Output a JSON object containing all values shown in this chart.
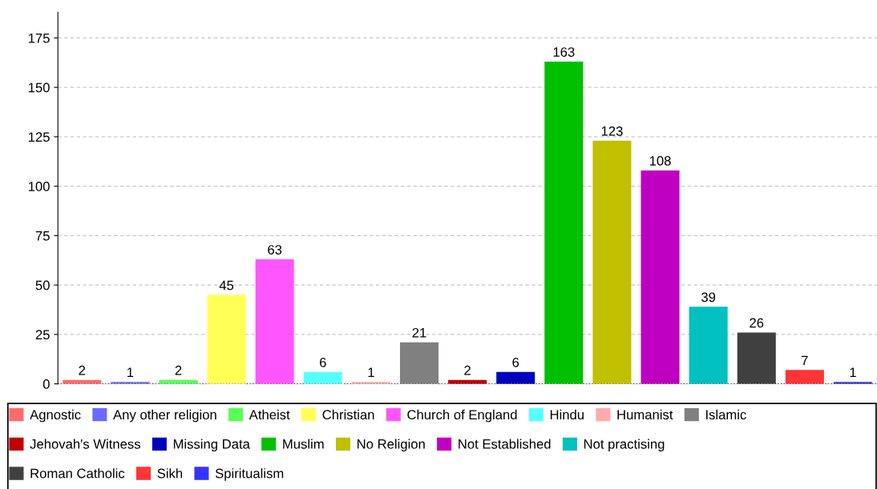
{
  "chart_data": {
    "type": "bar",
    "categories": [
      null,
      null,
      null,
      null,
      null,
      null,
      null,
      null,
      null,
      null,
      null,
      null,
      null,
      null,
      null,
      null,
      null
    ],
    "series": [
      {
        "name": "Agnostic",
        "color": "#ff6a6a",
        "values": [
          2,
          null,
          null,
          null,
          null,
          null,
          null,
          null,
          null,
          null,
          null,
          null,
          null,
          null,
          null,
          null,
          null
        ]
      },
      {
        "name": "Any other religion",
        "color": "#6a6aff",
        "values": [
          null,
          1,
          null,
          null,
          null,
          null,
          null,
          null,
          null,
          null,
          null,
          null,
          null,
          null,
          null,
          null,
          null
        ]
      },
      {
        "name": "Atheist",
        "color": "#55ff55",
        "values": [
          null,
          null,
          2,
          null,
          null,
          null,
          null,
          null,
          null,
          null,
          null,
          null,
          null,
          null,
          null,
          null,
          null
        ]
      },
      {
        "name": "Christian",
        "color": "#ffff55",
        "values": [
          null,
          null,
          null,
          45,
          null,
          null,
          null,
          null,
          null,
          null,
          null,
          null,
          null,
          null,
          null,
          null,
          null
        ]
      },
      {
        "name": "Church of England",
        "color": "#ff55ff",
        "values": [
          null,
          null,
          null,
          null,
          63,
          null,
          null,
          null,
          null,
          null,
          null,
          null,
          null,
          null,
          null,
          null,
          null
        ]
      },
      {
        "name": "Hindu",
        "color": "#55ffff",
        "values": [
          null,
          null,
          null,
          null,
          null,
          6,
          null,
          null,
          null,
          null,
          null,
          null,
          null,
          null,
          null,
          null,
          null
        ]
      },
      {
        "name": "Humanist",
        "color": "#ffaaaa",
        "values": [
          null,
          null,
          null,
          null,
          null,
          null,
          1,
          null,
          null,
          null,
          null,
          null,
          null,
          null,
          null,
          null,
          null
        ]
      },
      {
        "name": "Islamic",
        "color": "#808080",
        "values": [
          null,
          null,
          null,
          null,
          null,
          null,
          null,
          21,
          null,
          null,
          null,
          null,
          null,
          null,
          null,
          null,
          null
        ]
      },
      {
        "name": "Jehovah's Witness",
        "color": "#c00000",
        "values": [
          null,
          null,
          null,
          null,
          null,
          null,
          null,
          null,
          2,
          null,
          null,
          null,
          null,
          null,
          null,
          null,
          null
        ]
      },
      {
        "name": "Missing Data",
        "color": "#0000c0",
        "values": [
          null,
          null,
          null,
          null,
          null,
          null,
          null,
          null,
          null,
          6,
          null,
          null,
          null,
          null,
          null,
          null,
          null
        ]
      },
      {
        "name": "Muslim",
        "color": "#00c000",
        "values": [
          null,
          null,
          null,
          null,
          null,
          null,
          null,
          null,
          null,
          null,
          163,
          null,
          null,
          null,
          null,
          null,
          null
        ]
      },
      {
        "name": "No Religion",
        "color": "#c0c000",
        "values": [
          null,
          null,
          null,
          null,
          null,
          null,
          null,
          null,
          null,
          null,
          null,
          123,
          null,
          null,
          null,
          null,
          null
        ]
      },
      {
        "name": "Not Established",
        "color": "#c000c0",
        "values": [
          null,
          null,
          null,
          null,
          null,
          null,
          null,
          null,
          null,
          null,
          null,
          null,
          108,
          null,
          null,
          null,
          null
        ]
      },
      {
        "name": "Not practising",
        "color": "#00c0c0",
        "values": [
          null,
          null,
          null,
          null,
          null,
          null,
          null,
          null,
          null,
          null,
          null,
          null,
          null,
          39,
          null,
          null,
          null
        ]
      },
      {
        "name": "Roman Catholic",
        "color": "#404040",
        "values": [
          null,
          null,
          null,
          null,
          null,
          null,
          null,
          null,
          null,
          null,
          null,
          null,
          null,
          null,
          26,
          null,
          null
        ]
      },
      {
        "name": "Sikh",
        "color": "#ff3434",
        "values": [
          null,
          null,
          null,
          null,
          null,
          null,
          null,
          null,
          null,
          null,
          null,
          null,
          null,
          null,
          null,
          7,
          null
        ]
      },
      {
        "name": "Spiritualism",
        "color": "#3434ff",
        "values": [
          null,
          null,
          null,
          null,
          null,
          null,
          null,
          null,
          null,
          null,
          null,
          null,
          null,
          null,
          null,
          null,
          1
        ]
      }
    ],
    "ylim": [
      0,
      188
    ],
    "yticks": [
      0,
      25,
      50,
      75,
      100,
      125,
      150,
      175
    ],
    "grid": "y",
    "data_labels": true,
    "legend": "bottom",
    "tick_labels": "y"
  }
}
